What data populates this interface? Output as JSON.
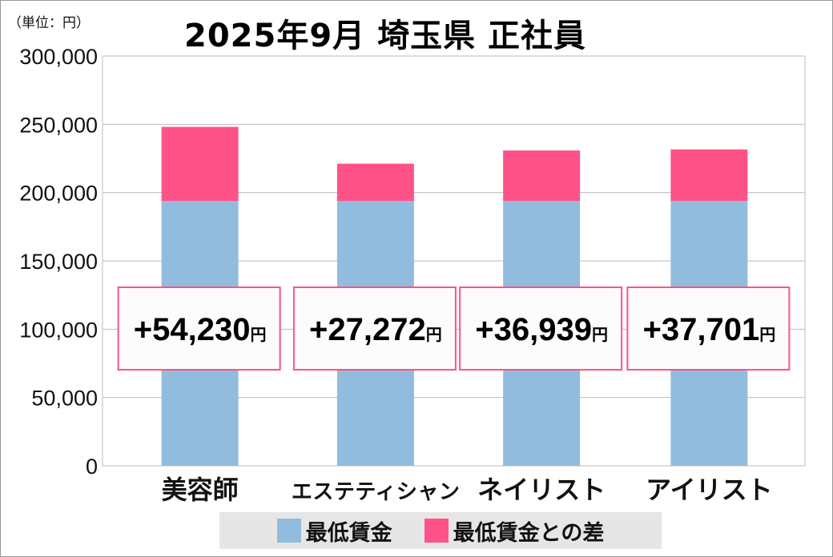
{
  "title": "2025年9月 埼玉県 正社員",
  "unit_label": "（単位：円）",
  "colors": {
    "base": "#92bcdd",
    "diff": "#ff5288",
    "label_border": "#ff5288",
    "grid": "#bbbbbb"
  },
  "legend": [
    {
      "label": "最低賃金",
      "color": "#92bcdd"
    },
    {
      "label": "最低賃金との差",
      "color": "#ff5288"
    }
  ],
  "chart_data": {
    "type": "bar",
    "stacked": true,
    "title": "2025年9月 埼玉県 正社員",
    "ylabel": "（単位：円）",
    "ylim": [
      0,
      300000
    ],
    "yticks": [
      0,
      50000,
      100000,
      150000,
      200000,
      250000,
      300000
    ],
    "ytick_labels": [
      "0",
      "50,000",
      "100,000",
      "150,000",
      "200,000",
      "250,000",
      "300,000"
    ],
    "grid": true,
    "legend_position": "bottom",
    "categories": [
      "美容師",
      "エステティシャン",
      "ネイリスト",
      "アイリスト"
    ],
    "series": [
      {
        "name": "最低賃金",
        "values": [
          193900,
          193900,
          193900,
          193900
        ]
      },
      {
        "name": "最低賃金との差",
        "values": [
          54230,
          27272,
          36939,
          37701
        ]
      }
    ],
    "data_labels": [
      {
        "value": "+54,230",
        "unit": "円"
      },
      {
        "value": "+27,272",
        "unit": "円"
      },
      {
        "value": "+36,939",
        "unit": "円"
      },
      {
        "value": "+37,701",
        "unit": "円"
      }
    ]
  }
}
